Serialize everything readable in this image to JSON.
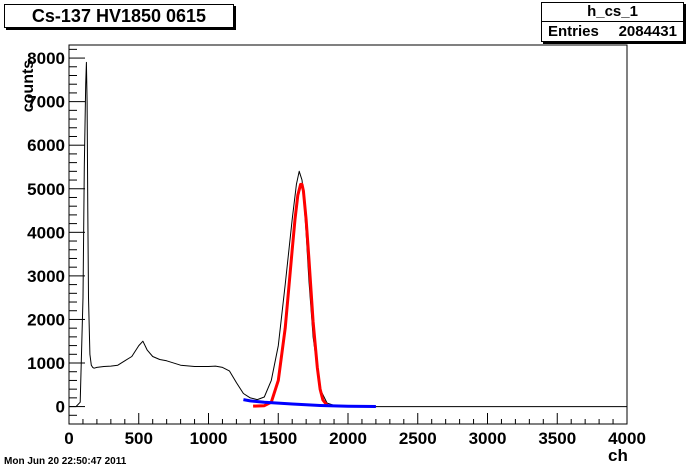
{
  "title": "Cs-137 HV1850 0615",
  "stats": {
    "name": "h_cs_1",
    "entries_label": "Entries",
    "entries_value": "2084431"
  },
  "footer": "Mon Jun 20 22:50:47 2011",
  "colors": {
    "histogram": "#000000",
    "fit": "#ff0000",
    "background_fit": "#0000ff",
    "green": "#00aa00"
  },
  "chart_data": {
    "type": "line",
    "xlabel": "ch",
    "ylabel": "counts",
    "xlim": [
      0,
      4000
    ],
    "ylim": [
      -400,
      8300
    ],
    "xticks": [
      0,
      500,
      1000,
      1500,
      2000,
      2500,
      3000,
      3500,
      4000
    ],
    "yticks": [
      0,
      1000,
      2000,
      3000,
      4000,
      5000,
      6000,
      7000,
      8000
    ],
    "grid": false,
    "series": [
      {
        "x": [
          0,
          50,
          80,
          100,
          110,
          120,
          125,
          130,
          135,
          140,
          150,
          160,
          170,
          180,
          200,
          250,
          300,
          350,
          400,
          450,
          500,
          530,
          560,
          600,
          650,
          700,
          800,
          900,
          1000,
          1050,
          1100,
          1150,
          1200,
          1250,
          1300,
          1350,
          1400,
          1450,
          1500,
          1550,
          1600,
          1630,
          1650,
          1660,
          1670,
          1680,
          1700,
          1720,
          1750,
          1800,
          1850,
          1900,
          2000,
          2200,
          2500,
          3000,
          3500,
          4000
        ],
        "values": [
          0,
          0,
          100,
          2500,
          5500,
          7400,
          7900,
          7000,
          4500,
          2500,
          1200,
          950,
          900,
          880,
          900,
          920,
          930,
          950,
          1050,
          1150,
          1400,
          1500,
          1300,
          1150,
          1080,
          1050,
          950,
          920,
          920,
          930,
          900,
          820,
          550,
          300,
          200,
          160,
          220,
          600,
          1400,
          2800,
          4300,
          5100,
          5400,
          5300,
          5200,
          4900,
          4000,
          2900,
          1600,
          400,
          80,
          30,
          10,
          0,
          0,
          0,
          0,
          0
        ]
      },
      {
        "x": [
          1320,
          1400,
          1450,
          1500,
          1550,
          1600,
          1620,
          1640,
          1660,
          1670,
          1680,
          1700,
          1720,
          1750,
          1780,
          1800,
          1820,
          1850
        ],
        "values": [
          10,
          20,
          100,
          600,
          1800,
          3600,
          4300,
          4850,
          5100,
          5100,
          4950,
          4300,
          3400,
          1950,
          900,
          400,
          150,
          30
        ]
      },
      {
        "x": [
          1250,
          1300,
          1400,
          1500,
          1600,
          1700,
          1800,
          1900,
          2000,
          2100,
          2200
        ],
        "values": [
          160,
          130,
          100,
          80,
          60,
          40,
          25,
          15,
          8,
          4,
          2
        ]
      }
    ]
  }
}
